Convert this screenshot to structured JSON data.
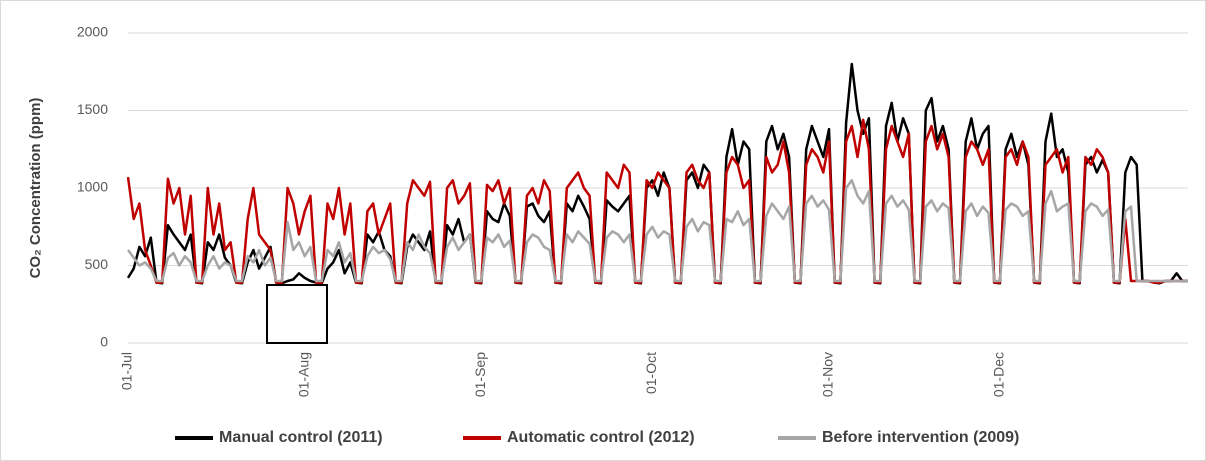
{
  "chart_data": {
    "type": "line",
    "y_label": "CO₂ Concentration (ppm)",
    "ylim": [
      0,
      2000
    ],
    "yticks": [
      0,
      500,
      1000,
      1500,
      2000
    ],
    "grid": true,
    "legend": "bottom",
    "categories": [
      "01-Jul",
      null,
      null,
      null,
      null,
      null,
      null,
      null,
      null,
      null,
      null,
      null,
      null,
      null,
      null,
      null,
      null,
      null,
      null,
      null,
      null,
      null,
      null,
      null,
      null,
      null,
      null,
      null,
      null,
      null,
      null,
      "01-Aug",
      null,
      null,
      null,
      null,
      null,
      null,
      null,
      null,
      null,
      null,
      null,
      null,
      null,
      null,
      null,
      null,
      null,
      null,
      null,
      null,
      null,
      null,
      null,
      null,
      null,
      null,
      null,
      null,
      null,
      null,
      "01-Sep",
      null,
      null,
      null,
      null,
      null,
      null,
      null,
      null,
      null,
      null,
      null,
      null,
      null,
      null,
      null,
      null,
      null,
      null,
      null,
      null,
      null,
      null,
      null,
      null,
      null,
      null,
      null,
      null,
      null,
      "01-Oct",
      null,
      null,
      null,
      null,
      null,
      null,
      null,
      null,
      null,
      null,
      null,
      null,
      null,
      null,
      null,
      null,
      null,
      null,
      null,
      null,
      null,
      null,
      null,
      null,
      null,
      null,
      null,
      null,
      null,
      null,
      "01-Nov",
      null,
      null,
      null,
      null,
      null,
      null,
      null,
      null,
      null,
      null,
      null,
      null,
      null,
      null,
      null,
      null,
      null,
      null,
      null,
      null,
      null,
      null,
      null,
      null,
      null,
      null,
      null,
      null,
      null,
      "01-Dec",
      null,
      null,
      null,
      null,
      null,
      null,
      null,
      null,
      null,
      null,
      null,
      null,
      null,
      null,
      null,
      null,
      null,
      null,
      null,
      null,
      null,
      null,
      null,
      null,
      null,
      null,
      null,
      null,
      null,
      null,
      null,
      null,
      null
    ],
    "series": [
      {
        "name": "Manual control (2011)",
        "color": "#000000",
        "values": [
          420,
          480,
          620,
          560,
          680,
          390,
          385,
          760,
          700,
          650,
          600,
          700,
          390,
          385,
          650,
          600,
          700,
          550,
          500,
          390,
          385,
          520,
          600,
          480,
          550,
          620,
          390,
          385,
          400,
          410,
          450,
          420,
          400,
          390,
          385,
          480,
          520,
          600,
          450,
          520,
          390,
          385,
          700,
          650,
          720,
          600,
          560,
          390,
          385,
          620,
          700,
          650,
          600,
          720,
          390,
          385,
          760,
          700,
          800,
          650,
          700,
          390,
          385,
          850,
          800,
          780,
          900,
          820,
          390,
          385,
          880,
          900,
          820,
          780,
          850,
          390,
          385,
          900,
          850,
          950,
          880,
          800,
          390,
          385,
          920,
          880,
          850,
          900,
          950,
          390,
          385,
          1000,
          1050,
          950,
          1100,
          1000,
          390,
          385,
          1050,
          1100,
          1000,
          1150,
          1100,
          390,
          385,
          1200,
          1380,
          1150,
          1300,
          1250,
          390,
          385,
          1300,
          1400,
          1250,
          1350,
          1200,
          390,
          385,
          1250,
          1400,
          1300,
          1200,
          1380,
          390,
          385,
          1420,
          1800,
          1500,
          1350,
          1450,
          390,
          385,
          1400,
          1550,
          1300,
          1450,
          1350,
          390,
          385,
          1500,
          1580,
          1300,
          1400,
          1250,
          390,
          385,
          1300,
          1450,
          1250,
          1350,
          1400,
          390,
          385,
          1250,
          1350,
          1200,
          1300,
          1150,
          390,
          385,
          1300,
          1480,
          1200,
          1250,
          1100,
          390,
          385,
          1150,
          1200,
          1100,
          1180,
          1100,
          390,
          385,
          1100,
          1200,
          1150,
          400,
          400,
          390,
          385,
          400,
          400,
          450,
          400,
          400
        ]
      },
      {
        "name": "Automatic control (2012)",
        "color": "#c00000",
        "values": [
          1070,
          800,
          900,
          600,
          500,
          390,
          390,
          1060,
          900,
          1000,
          700,
          950,
          390,
          390,
          1000,
          700,
          900,
          600,
          650,
          390,
          390,
          800,
          1000,
          700,
          650,
          600,
          390,
          390,
          1000,
          900,
          700,
          850,
          950,
          390,
          390,
          900,
          800,
          1000,
          700,
          900,
          390,
          390,
          850,
          900,
          700,
          800,
          900,
          390,
          390,
          900,
          1050,
          1000,
          950,
          1040,
          390,
          390,
          1000,
          1050,
          900,
          950,
          1030,
          390,
          390,
          1020,
          980,
          1050,
          900,
          1000,
          390,
          390,
          950,
          1000,
          900,
          1050,
          980,
          390,
          390,
          1000,
          1050,
          1100,
          1000,
          950,
          390,
          390,
          1100,
          1050,
          1000,
          1150,
          1100,
          390,
          390,
          1050,
          1000,
          1100,
          1050,
          1000,
          390,
          390,
          1100,
          1150,
          1050,
          1000,
          1100,
          390,
          390,
          1100,
          1200,
          1150,
          1000,
          1050,
          390,
          390,
          1200,
          1100,
          1150,
          1300,
          1100,
          390,
          390,
          1150,
          1250,
          1200,
          1100,
          1300,
          390,
          390,
          1300,
          1400,
          1200,
          1440,
          1250,
          390,
          390,
          1250,
          1400,
          1300,
          1200,
          1350,
          390,
          390,
          1300,
          1400,
          1250,
          1350,
          1200,
          390,
          390,
          1200,
          1300,
          1250,
          1150,
          1250,
          390,
          390,
          1200,
          1250,
          1150,
          1300,
          1200,
          390,
          390,
          1150,
          1200,
          1250,
          1100,
          1200,
          390,
          390,
          1200,
          1150,
          1250,
          1200,
          1100,
          390,
          390,
          800,
          400,
          400,
          400,
          400,
          390,
          390,
          400,
          400,
          400,
          400,
          400
        ]
      },
      {
        "name": "Before intervention (2009)",
        "color": "#a6a6a6",
        "values": [
          600,
          550,
          500,
          520,
          480,
          400,
          400,
          550,
          580,
          500,
          560,
          520,
          400,
          400,
          500,
          560,
          480,
          520,
          500,
          400,
          400,
          560,
          520,
          600,
          500,
          550,
          400,
          400,
          780,
          600,
          650,
          560,
          620,
          400,
          400,
          600,
          560,
          650,
          520,
          580,
          400,
          400,
          560,
          620,
          580,
          600,
          540,
          400,
          400,
          650,
          600,
          700,
          620,
          580,
          400,
          400,
          620,
          680,
          600,
          650,
          700,
          400,
          400,
          680,
          650,
          700,
          620,
          660,
          400,
          400,
          650,
          700,
          680,
          620,
          600,
          400,
          400,
          700,
          650,
          720,
          680,
          640,
          400,
          400,
          680,
          720,
          700,
          650,
          700,
          400,
          400,
          700,
          750,
          680,
          720,
          700,
          400,
          400,
          750,
          800,
          720,
          780,
          760,
          400,
          400,
          800,
          780,
          850,
          760,
          800,
          400,
          400,
          820,
          900,
          850,
          800,
          880,
          400,
          400,
          900,
          950,
          880,
          920,
          860,
          400,
          400,
          1000,
          1050,
          950,
          900,
          980,
          400,
          400,
          900,
          950,
          880,
          920,
          860,
          400,
          400,
          880,
          920,
          850,
          900,
          870,
          400,
          400,
          850,
          900,
          820,
          880,
          840,
          400,
          400,
          860,
          900,
          880,
          820,
          850,
          400,
          400,
          900,
          980,
          850,
          880,
          900,
          400,
          400,
          850,
          900,
          880,
          820,
          860,
          400,
          400,
          850,
          880,
          400,
          400,
          400,
          400,
          400,
          400,
          400,
          400,
          400,
          400
        ]
      }
    ]
  }
}
